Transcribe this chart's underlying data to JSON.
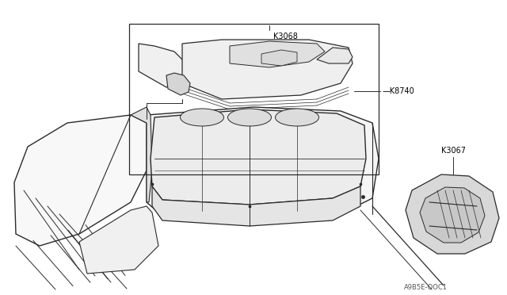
{
  "bg_color": "#ffffff",
  "line_color": "#2a2a2a",
  "label_color": "#000000",
  "fig_width": 6.4,
  "fig_height": 3.72,
  "dpi": 100,
  "label_K3068": [
    0.51,
    0.845
  ],
  "label_K8740": [
    0.595,
    0.64
  ],
  "label_K3067": [
    0.82,
    0.53
  ],
  "diagram_code": "A9B5E-OOC1",
  "label_fontsize": 7.0
}
